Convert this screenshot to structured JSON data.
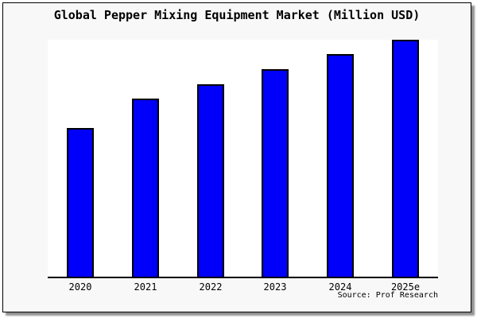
{
  "figure": {
    "title": "Global Pepper Mixing Equipment Market (Million USD)",
    "source": "Source: Prof Research"
  },
  "chart_data": {
    "type": "bar",
    "title": "Global Pepper Mixing Equipment Market (Million USD)",
    "categories": [
      "2020",
      "2021",
      "2022",
      "2023",
      "2024",
      "2025e"
    ],
    "values": [
      62.6,
      75.3,
      81.3,
      87.5,
      93.8,
      100
    ],
    "ylim": [
      0,
      100
    ],
    "xlabel": "",
    "ylabel": "",
    "y_axis_visible": false,
    "grid": false,
    "legend": false,
    "bar_fill_color": "#0000fa",
    "bar_border_color": "#000000",
    "background_color": "#f8f8f8",
    "plot_background_color": "#ffffff",
    "source": "Source: Prof Research"
  }
}
